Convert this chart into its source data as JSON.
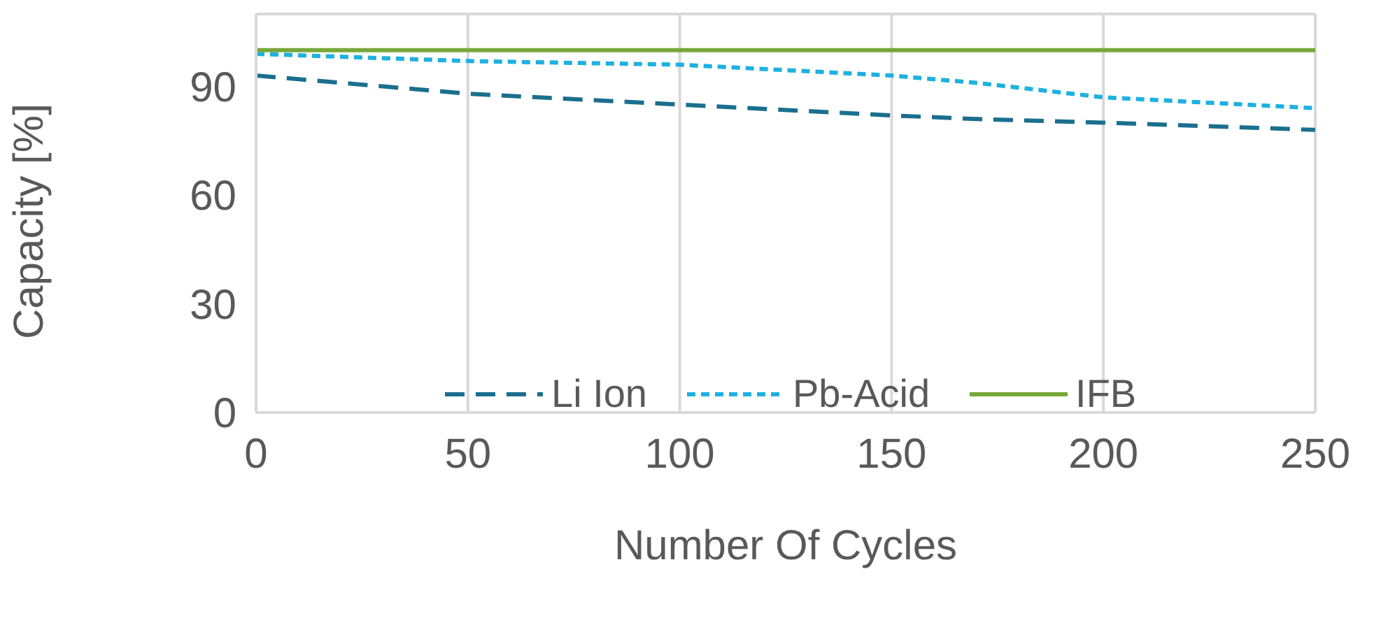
{
  "chart_data": {
    "type": "line",
    "xlabel": "Number Of Cycles",
    "ylabel": "Capacity [%]",
    "x": [
      0,
      50,
      100,
      150,
      170,
      200,
      250
    ],
    "series": [
      {
        "name": "Li Ion",
        "color": "#1b6f8e",
        "line_style": "dashed",
        "values": [
          93,
          88,
          85,
          82,
          81,
          80,
          78
        ]
      },
      {
        "name": "Pb-Acid",
        "color": "#1eb1e0",
        "line_style": "dotted",
        "values": [
          99,
          97,
          96,
          93,
          91,
          87,
          84
        ]
      },
      {
        "name": "IFB",
        "color": "#77a83a",
        "line_style": "solid",
        "values": [
          100,
          100,
          100,
          100,
          100,
          100,
          100
        ]
      }
    ],
    "xlim": [
      0,
      250
    ],
    "xticks": [
      0,
      50,
      100,
      150,
      200,
      250
    ],
    "ylim": [
      0,
      110
    ],
    "yticks": [
      0,
      30,
      60,
      90
    ],
    "grid": true,
    "legend": "bottom right",
    "marker": "none"
  }
}
